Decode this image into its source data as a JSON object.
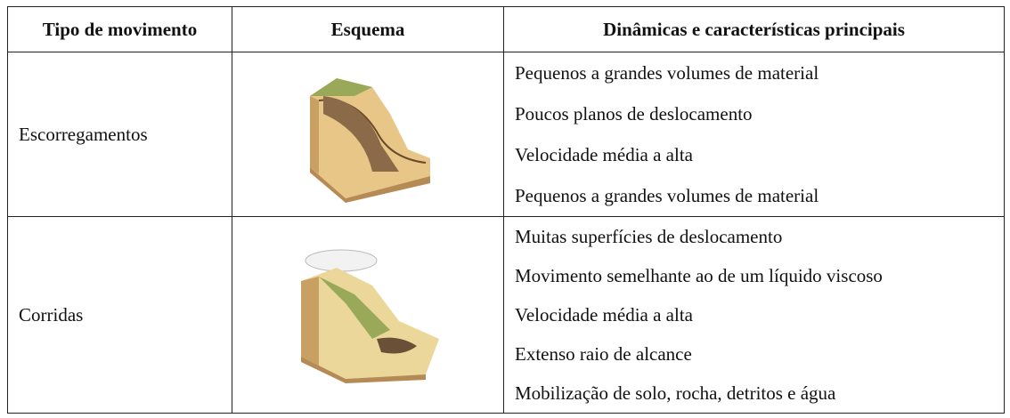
{
  "table": {
    "header": [
      "Tipo de movimento",
      "Esquema",
      "Dinâmicas e características principais"
    ],
    "rows": [
      {
        "type": "Escorregamentos",
        "items": [
          "Pequenos a grandes volumes de material",
          "Poucos planos de deslocamento",
          "Velocidade média a alta",
          "Pequenos a grandes volumes de material"
        ]
      },
      {
        "type": "Corridas",
        "items": [
          "Muitas superfícies de deslocamento",
          "Movimento semelhante ao de um líquido viscoso",
          "Velocidade média a alta",
          "Extenso raio de alcance",
          "Mobilização de solo, rocha, detritos e água"
        ]
      }
    ]
  }
}
